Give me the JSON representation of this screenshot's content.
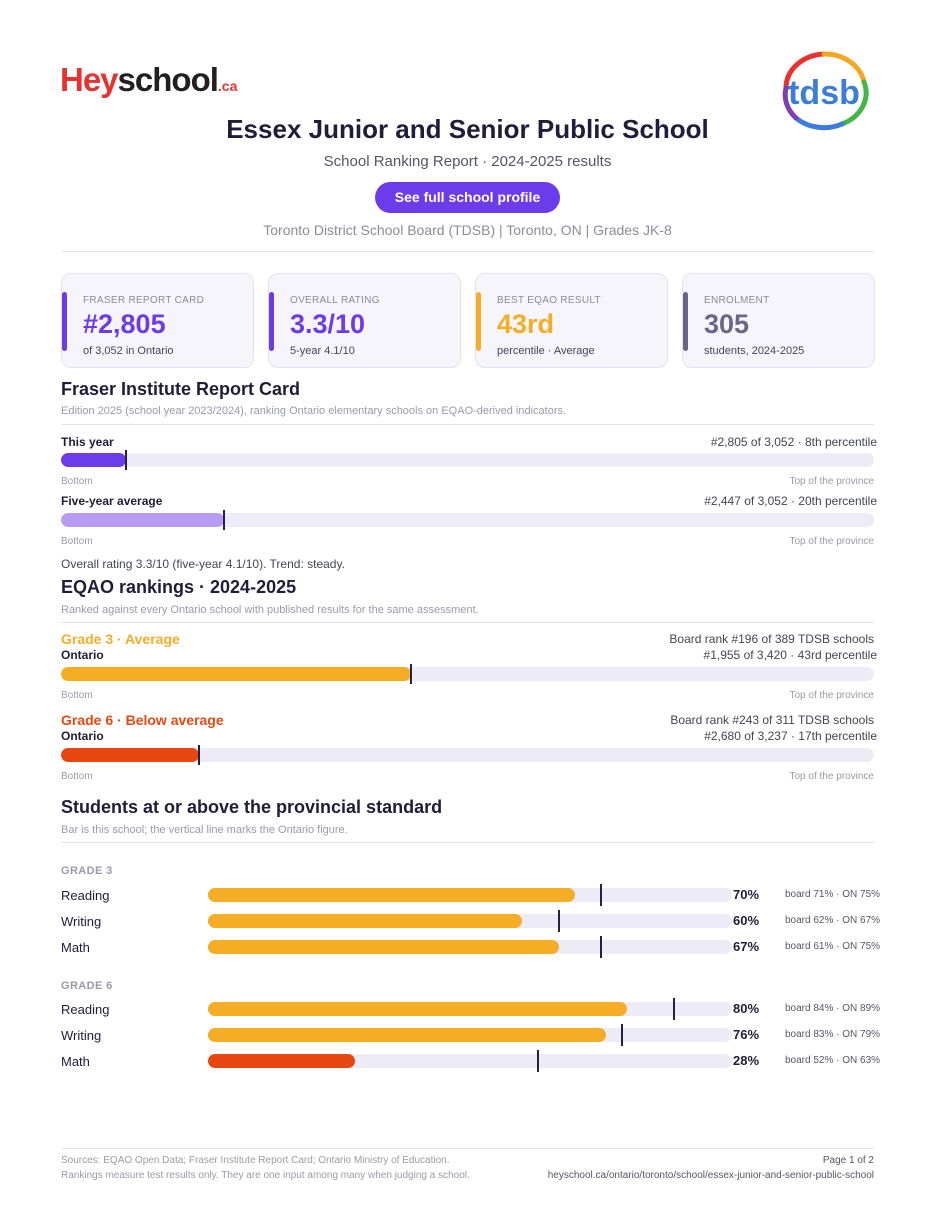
{
  "logo": {
    "hey": "Hey",
    "school": "school",
    "ca": ".ca"
  },
  "board_logo": {
    "text": "tdsb",
    "ring_colors": [
      "#e8322f",
      "#f5a623",
      "#43b649",
      "#3b7dd8",
      "#7b3fb3"
    ]
  },
  "header": {
    "title": "Essex Junior and Senior Public School",
    "subtitle": "School Ranking Report  ·  2024-2025 results",
    "profile_button": "See full school profile",
    "meta": "Toronto District School Board (TDSB)  |  Toronto, ON  |  Grades JK-8"
  },
  "colors": {
    "purple": "#6c3bea",
    "light_purple": "#b69cf6",
    "amber": "#f4ad24",
    "orange_red": "#e8470f",
    "slate": "#6b6688",
    "dark": "#1f1d3a"
  },
  "cards": [
    {
      "label": "FRASER REPORT CARD",
      "value": "#2,805",
      "sub": "of 3,052 in Ontario",
      "color": "#6c3bea"
    },
    {
      "label": "OVERALL RATING",
      "value": "3.3/10",
      "sub": "5-year 4.1/10",
      "color": "#6c3bea"
    },
    {
      "label": "BEST EQAO RESULT",
      "value": "43rd",
      "sub": "percentile  ·  Average",
      "color": "#f4ad24"
    },
    {
      "label": "ENROLMENT",
      "value": "305",
      "sub": "students, 2024-2025",
      "color": "#6b6688"
    }
  ],
  "fraser": {
    "heading": "Fraser Institute Report Card",
    "note": "Edition 2025 (school year 2023/2024), ranking Ontario elementary schools on EQAO-derived indicators.",
    "axis_left": "Bottom",
    "axis_right": "Top of the province",
    "rows": [
      {
        "label": "This year",
        "right": "#2,805 of 3,052  ·  8th percentile",
        "percentile": 8
      },
      {
        "label": "Five-year average",
        "right": "#2,447 of 3,052  ·  20th percentile",
        "percentile": 20
      }
    ],
    "summary": "Overall rating 3.3/10 (five-year 4.1/10). Trend: steady."
  },
  "eqao": {
    "heading": "EQAO rankings  ·  2024-2025",
    "note": "Ranked against every Ontario school with published results for the same assessment.",
    "axis_left": "Bottom",
    "axis_right": "Top of the province",
    "grades": [
      {
        "title": "Grade 3  ·  Average",
        "board_rank": "Board rank #196 of 389 TDSB schools",
        "scope": "Ontario",
        "right": "#1,955 of 3,420  ·  43rd percentile",
        "percentile": 43
      },
      {
        "title": "Grade 6  ·  Below average",
        "board_rank": "Board rank #243 of 311 TDSB schools",
        "scope": "Ontario",
        "right": "#2,680 of 3,237  ·  17th percentile",
        "percentile": 17
      }
    ]
  },
  "standard": {
    "heading": "Students at or above the provincial standard",
    "note": "Bar is this school; the vertical line marks the Ontario figure.",
    "groups": [
      {
        "grade": "GRADE 3",
        "rows": [
          {
            "subject": "Reading",
            "pct": 70,
            "pct_label": "70%",
            "ontario": 75,
            "compare": "board 71%  ·  ON 75%"
          },
          {
            "subject": "Writing",
            "pct": 60,
            "pct_label": "60%",
            "ontario": 67,
            "compare": "board 62%  ·  ON 67%"
          },
          {
            "subject": "Math",
            "pct": 67,
            "pct_label": "67%",
            "ontario": 75,
            "compare": "board 61%  ·  ON 75%"
          }
        ]
      },
      {
        "grade": "GRADE 6",
        "rows": [
          {
            "subject": "Reading",
            "pct": 80,
            "pct_label": "80%",
            "ontario": 89,
            "compare": "board 84%  ·  ON 89%"
          },
          {
            "subject": "Writing",
            "pct": 76,
            "pct_label": "76%",
            "ontario": 79,
            "compare": "board 83%  ·  ON 79%"
          },
          {
            "subject": "Math",
            "pct": 28,
            "pct_label": "28%",
            "ontario": 63,
            "compare": "board 52%  ·  ON 63%"
          }
        ]
      }
    ]
  },
  "footer": {
    "sources": "Sources: EQAO Open Data; Fraser Institute Report Card; Ontario Ministry of Education.",
    "disclaimer": "Rankings measure test results only. They are one input among many when judging a school.",
    "page": "Page 1 of 2",
    "url": "heyschool.ca/ontario/toronto/school/essex-junior-and-senior-public-school"
  }
}
